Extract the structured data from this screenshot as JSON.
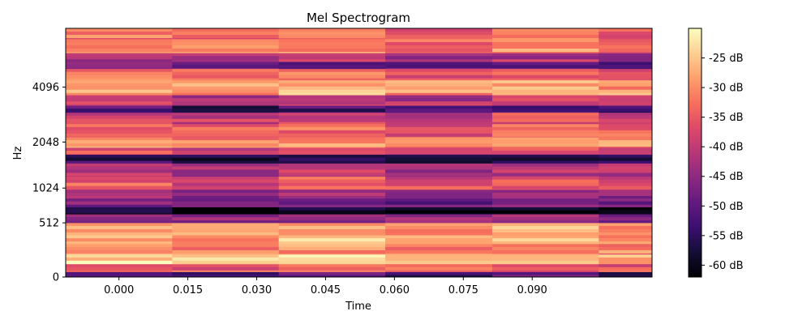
{
  "chart_data": {
    "type": "heatmap",
    "title": "Mel Spectrogram",
    "xlabel": "Time",
    "ylabel": "Hz",
    "x_ticks": [
      "0.000",
      "0.015",
      "0.030",
      "0.045",
      "0.060",
      "0.075",
      "0.090"
    ],
    "x_tick_values": [
      0.0,
      0.015,
      0.03,
      0.045,
      0.06,
      0.075,
      0.09
    ],
    "xlim": [
      -0.0116,
      0.1161
    ],
    "y_scale": "mel",
    "y_ticks": [
      "0",
      "512",
      "1024",
      "2048",
      "4096"
    ],
    "y_tick_values": [
      0,
      512,
      1024,
      2048,
      4096
    ],
    "ylim_mel": [
      0,
      2840
    ],
    "frames": [
      {
        "t_start": -0.0116,
        "t_end": 0.0116
      },
      {
        "t_start": 0.0116,
        "t_end": 0.0348
      },
      {
        "t_start": 0.0348,
        "t_end": 0.058
      },
      {
        "t_start": 0.058,
        "t_end": 0.0813
      },
      {
        "t_start": 0.0813,
        "t_end": 0.1045
      },
      {
        "t_start": 0.1045,
        "t_end": 0.1161
      }
    ],
    "colorbar": {
      "colormap": "magma",
      "min_db": -62,
      "max_db": -20,
      "ticks": [
        "-25 dB",
        "-30 dB",
        "-35 dB",
        "-40 dB",
        "-45 dB",
        "-50 dB",
        "-55 dB",
        "-60 dB"
      ],
      "tick_values": [
        -25,
        -30,
        -35,
        -40,
        -45,
        -50,
        -55,
        -60
      ]
    },
    "band_profile_db": [
      {
        "mel_from": 0,
        "mel_to": 60,
        "db": -52
      },
      {
        "mel_from": 60,
        "mel_to": 150,
        "db": -34
      },
      {
        "mel_from": 150,
        "mel_to": 260,
        "db": -24
      },
      {
        "mel_from": 260,
        "mel_to": 380,
        "db": -30
      },
      {
        "mel_from": 380,
        "mel_to": 480,
        "db": -27
      },
      {
        "mel_from": 480,
        "mel_to": 620,
        "db": -28
      },
      {
        "mel_from": 620,
        "mel_to": 720,
        "db": -44
      },
      {
        "mel_from": 720,
        "mel_to": 800,
        "db": -61
      },
      {
        "mel_from": 800,
        "mel_to": 900,
        "db": -48
      },
      {
        "mel_from": 900,
        "mel_to": 1000,
        "db": -43
      },
      {
        "mel_from": 1000,
        "mel_to": 1150,
        "db": -36
      },
      {
        "mel_from": 1150,
        "mel_to": 1300,
        "db": -41
      },
      {
        "mel_from": 1300,
        "mel_to": 1400,
        "db": -55
      },
      {
        "mel_from": 1400,
        "mel_to": 1480,
        "db": -37
      },
      {
        "mel_from": 1480,
        "mel_to": 1600,
        "db": -29
      },
      {
        "mel_from": 1600,
        "mel_to": 1750,
        "db": -34
      },
      {
        "mel_from": 1750,
        "mel_to": 1880,
        "db": -38
      },
      {
        "mel_from": 1880,
        "mel_to": 1960,
        "db": -53
      },
      {
        "mel_from": 1960,
        "mel_to": 2080,
        "db": -40
      },
      {
        "mel_from": 2080,
        "mel_to": 2250,
        "db": -28
      },
      {
        "mel_from": 2250,
        "mel_to": 2380,
        "db": -34
      },
      {
        "mel_from": 2380,
        "mel_to": 2460,
        "db": -49
      },
      {
        "mel_from": 2460,
        "mel_to": 2560,
        "db": -42
      },
      {
        "mel_from": 2560,
        "mel_to": 2720,
        "db": -31
      },
      {
        "mel_from": 2720,
        "mel_to": 2840,
        "db": -33
      }
    ]
  }
}
